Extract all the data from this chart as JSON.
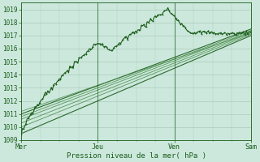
{
  "xlabel": "Pression niveau de la mer( hPa )",
  "background_color": "#cce8dc",
  "grid_color": "#aaccbb",
  "text_color": "#1a5c1a",
  "line_color_main": "#1a5c1a",
  "line_color_light": "#4a8c4a",
  "ylim": [
    1009,
    1019.5
  ],
  "yticks": [
    1009,
    1010,
    1011,
    1012,
    1013,
    1014,
    1015,
    1016,
    1017,
    1018,
    1019
  ],
  "xlim": [
    0,
    72
  ],
  "xtick_positions": [
    0,
    24,
    48,
    72
  ],
  "xtick_labels": [
    "Mer",
    "Jeu",
    "Ven",
    "Sam"
  ],
  "n_points": 200
}
